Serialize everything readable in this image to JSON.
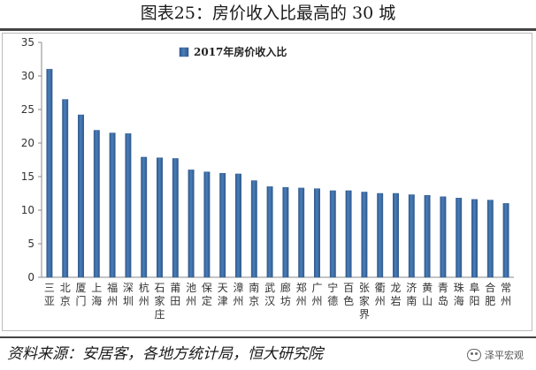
{
  "header": {
    "title": "图表25：房价收入比最高的 30 城"
  },
  "footer": {
    "source": "资料来源：安居客，各地方统计局，恒大研究院",
    "watermark": "泽平宏观"
  },
  "colors": {
    "bar": "#4a7ebb",
    "bar_dark": "#2f5a8c",
    "axis": "#888888"
  },
  "chart_data": {
    "type": "bar",
    "title": "",
    "xlabel": "",
    "ylabel": "",
    "ylim": [
      0,
      35
    ],
    "yticks": [
      0,
      5,
      10,
      15,
      20,
      25,
      30,
      35
    ],
    "grid": false,
    "legend_position": "top-center",
    "categories": [
      "三亚",
      "北京",
      "厦门",
      "上海",
      "福州",
      "深圳",
      "杭州",
      "石家庄",
      "莆田",
      "池州",
      "保定",
      "天津",
      "漳州",
      "南京",
      "武汉",
      "廊坊",
      "郑州",
      "广州",
      "宁德",
      "百色",
      "张家界",
      "衢州",
      "龙岩",
      "济南",
      "黄山",
      "青岛",
      "珠海",
      "阜阳",
      "合肥",
      "常州"
    ],
    "series": [
      {
        "name": "2017年房价收入比",
        "values": [
          31.0,
          26.5,
          24.2,
          21.9,
          21.5,
          21.4,
          17.9,
          17.8,
          17.7,
          16.0,
          15.7,
          15.5,
          15.4,
          14.4,
          13.5,
          13.4,
          13.3,
          13.2,
          12.9,
          12.9,
          12.7,
          12.5,
          12.5,
          12.3,
          12.2,
          12.0,
          11.8,
          11.6,
          11.5,
          11.0
        ]
      }
    ]
  }
}
